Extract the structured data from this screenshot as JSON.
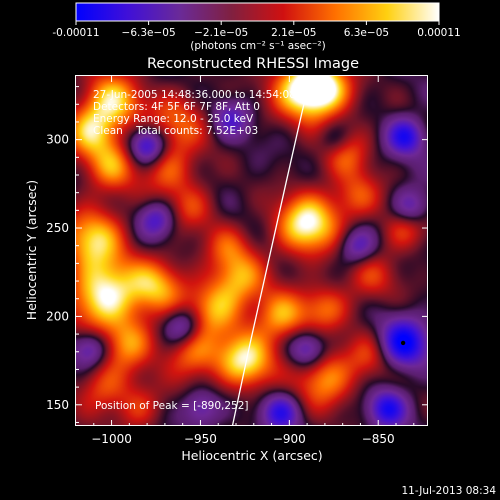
{
  "chart_data": {
    "type": "heatmap",
    "title": "Reconstructed RHESSI Image",
    "xlabel": "Heliocentric X (arcsec)",
    "ylabel": "Heliocentric Y (arcsec)",
    "xlim": [
      -1020,
      -822
    ],
    "ylim": [
      138,
      336
    ],
    "x_ticks": [
      -1000,
      -950,
      -900,
      -850
    ],
    "x_tick_labels": [
      "−1000",
      "−950",
      "−900",
      "−850"
    ],
    "y_ticks": [
      150,
      200,
      250,
      300
    ],
    "y_tick_labels": [
      "150",
      "200",
      "250",
      "300"
    ],
    "colorbar": {
      "range": [
        -0.00011,
        0.00011
      ],
      "tick_labels": [
        "-0.00011",
        "−6.3e−05",
        "−2.1e−05",
        "2.1e−05",
        "6.3e−05",
        "0.00011"
      ],
      "unit_label": "(photons cm⁻² s⁻¹ asec⁻²)",
      "colors": [
        "#0000ff",
        "#4010d8",
        "#6a2a98",
        "#802040",
        "#d01010",
        "#ff7000",
        "#ffd010",
        "#ffffff"
      ]
    },
    "info_lines": [
      "27-Jun-2005 14:48:36.000 to 14:54:08.000",
      "Detectors: 4F 5F 6F 7F 8F, Att 0",
      "Energy Range: 12.0 - 25.0 keV",
      "Clean    Total counts: 7.52E+03"
    ],
    "peak_label": "Position of Peak = [-890,252]",
    "peak_position": [
      -890,
      252
    ],
    "limb_curve": [
      [
        -932,
        138
      ],
      [
        -922,
        185
      ],
      [
        -912,
        230
      ],
      [
        -902,
        275
      ],
      [
        -893,
        315
      ],
      [
        -888,
        336
      ]
    ],
    "marker_position": [
      -836,
      185
    ],
    "sources": [
      [
        -892,
        330,
        1.0,
        12
      ],
      [
        -880,
        328,
        0.7,
        10
      ],
      [
        -1000,
        322,
        0.8,
        11
      ],
      [
        -1012,
        305,
        0.7,
        10
      ],
      [
        -963,
        310,
        0.5,
        12
      ],
      [
        -968,
        282,
        0.5,
        10
      ],
      [
        -955,
        262,
        0.4,
        9
      ],
      [
        -890,
        252,
        1.0,
        12
      ],
      [
        -870,
        295,
        0.6,
        10
      ],
      [
        -862,
        268,
        0.5,
        9
      ],
      [
        -1010,
        245,
        0.8,
        12
      ],
      [
        -1005,
        212,
        1.0,
        13
      ],
      [
        -975,
        218,
        0.7,
        11
      ],
      [
        -942,
        205,
        0.7,
        11
      ],
      [
        -928,
        222,
        0.6,
        10
      ],
      [
        -905,
        200,
        0.7,
        10
      ],
      [
        -880,
        205,
        0.5,
        9
      ],
      [
        -855,
        222,
        0.4,
        10
      ],
      [
        -925,
        175,
        0.9,
        11
      ],
      [
        -955,
        178,
        0.6,
        10
      ],
      [
        -990,
        185,
        0.6,
        10
      ],
      [
        -1005,
        160,
        0.5,
        10
      ],
      [
        -985,
        148,
        0.4,
        9
      ],
      [
        -880,
        165,
        0.7,
        11
      ],
      [
        -855,
        178,
        0.4,
        9
      ],
      [
        -1000,
        285,
        0.6,
        10
      ],
      [
        -935,
        240,
        0.4,
        9
      ],
      [
        -835,
        250,
        0.5,
        9
      ],
      [
        -980,
        297,
        -0.8,
        7
      ],
      [
        -975,
        255,
        -0.6,
        7
      ],
      [
        -933,
        312,
        -0.5,
        7
      ],
      [
        -835,
        302,
        -0.8,
        7
      ],
      [
        -832,
        262,
        -0.6,
        7
      ],
      [
        -862,
        240,
        -0.6,
        7
      ],
      [
        -960,
        195,
        -0.6,
        7
      ],
      [
        -890,
        182,
        -0.6,
        7
      ],
      [
        -845,
        148,
        -0.8,
        7
      ],
      [
        -905,
        146,
        -0.7,
        7
      ],
      [
        -1012,
        182,
        -0.6,
        7
      ],
      [
        -875,
        300,
        -0.5,
        7
      ],
      [
        -836,
        185,
        -1.0,
        9
      ],
      [
        -950,
        148,
        -0.5,
        7
      ]
    ]
  },
  "footer": {
    "timestamp": "11-Jul-2013 08:34"
  }
}
